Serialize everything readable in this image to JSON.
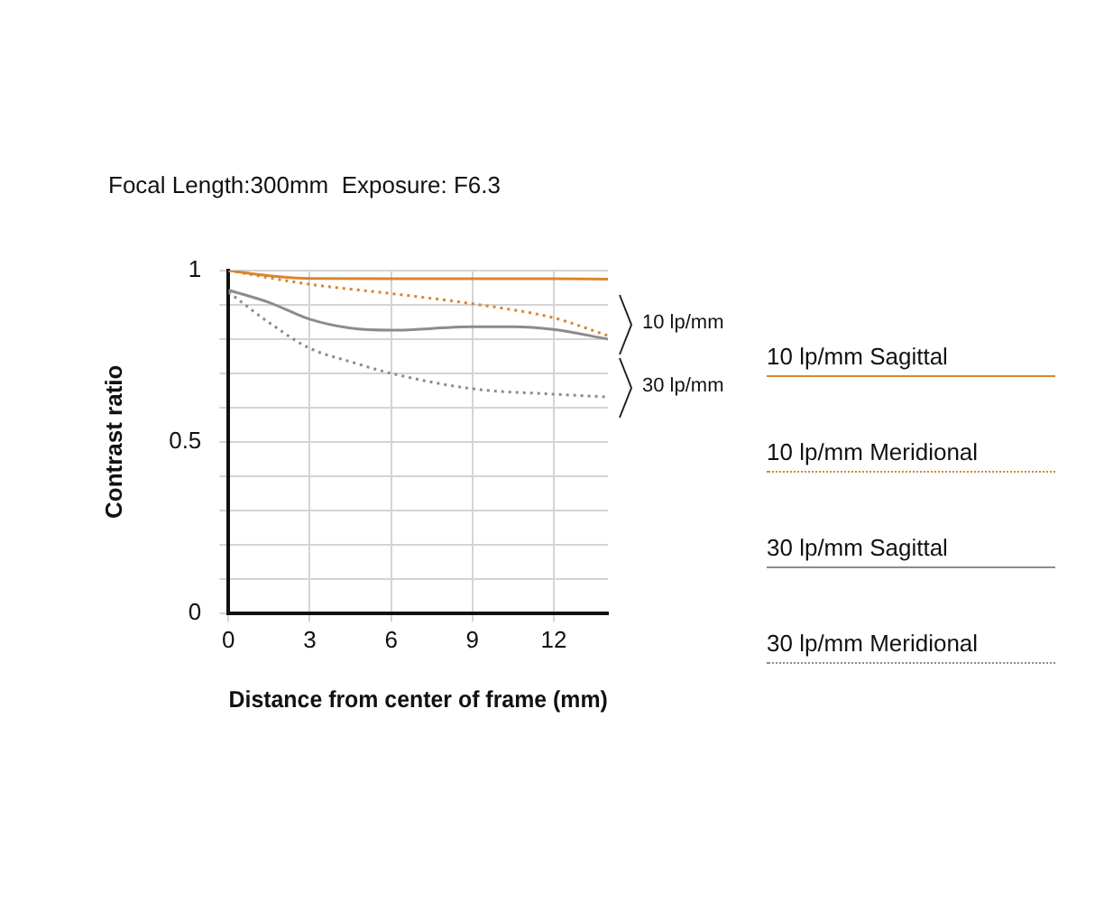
{
  "chart_data": {
    "type": "line",
    "title": "Focal Length:300mm  Exposure: F6.3",
    "xlabel": "Distance from center of frame (mm)",
    "ylabel": "Contrast ratio",
    "xlim": [
      0,
      14
    ],
    "xticks": [
      0,
      3,
      6,
      9,
      12
    ],
    "ylim": [
      0,
      1
    ],
    "yticks": [
      0,
      {
        "value": 0.1,
        "label": null
      },
      {
        "value": 0.2,
        "label": null
      },
      {
        "value": 0.3,
        "label": null
      },
      {
        "value": 0.4,
        "label": null
      },
      0.5,
      {
        "value": 0.6,
        "label": null
      },
      {
        "value": 0.7,
        "label": null
      },
      {
        "value": 0.8,
        "label": null
      },
      {
        "value": 0.9,
        "label": null
      },
      1
    ],
    "grid": true,
    "legend": "right",
    "marker": "none",
    "series": [
      {
        "name": "10 lp/mm Sagittal",
        "color": "#d9862e",
        "line_style": "solid",
        "x": [
          0,
          1.5,
          3,
          6,
          9,
          12,
          14
        ],
        "values": [
          1.0,
          0.985,
          0.977,
          0.976,
          0.976,
          0.976,
          0.975
        ]
      },
      {
        "name": "10 lp/mm Meridional",
        "color": "#d9862e",
        "line_style": "dotted",
        "x": [
          0,
          3,
          6,
          9,
          12,
          14
        ],
        "values": [
          1.0,
          0.96,
          0.933,
          0.903,
          0.862,
          0.81
        ]
      },
      {
        "name": "30 lp/mm Sagittal",
        "color": "#8c8c8c",
        "line_style": "solid",
        "x": [
          0,
          1.5,
          3,
          4.5,
          6,
          9,
          10.5,
          12,
          14
        ],
        "values": [
          0.943,
          0.907,
          0.858,
          0.832,
          0.826,
          0.836,
          0.836,
          0.828,
          0.8
        ]
      },
      {
        "name": "30 lp/mm Meridional",
        "color": "#8c8c8c",
        "line_style": "dotted",
        "x": [
          0,
          1.5,
          3,
          4.5,
          6,
          9,
          12,
          14
        ],
        "values": [
          0.937,
          0.848,
          0.773,
          0.734,
          0.7,
          0.655,
          0.639,
          0.631
        ]
      }
    ],
    "annotations": [
      "10 lp/mm",
      "30 lp/mm"
    ]
  }
}
